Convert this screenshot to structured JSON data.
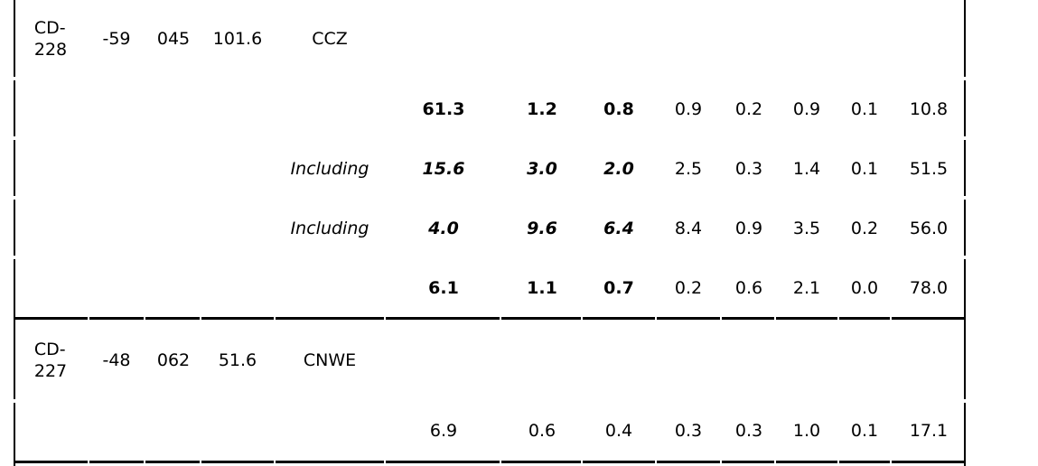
{
  "holes": [
    {
      "id_line1": "CD-",
      "id_line2": "228",
      "dip": "-59",
      "azimuth": "045",
      "depth": "101.6",
      "target": "CCZ",
      "intervals": [
        {
          "label": "",
          "v1": "61.3",
          "v2": "1.2",
          "v3": "0.8",
          "v4": "0.9",
          "v5": "0.2",
          "v6": "0.9",
          "v7": "0.1",
          "v8": "10.8"
        },
        {
          "label": "Including",
          "v1": "15.6",
          "v2": "3.0",
          "v3": "2.0",
          "v4": "2.5",
          "v5": "0.3",
          "v6": "1.4",
          "v7": "0.1",
          "v8": "51.5"
        },
        {
          "label": "Including",
          "v1": "4.0",
          "v2": "9.6",
          "v3": "6.4",
          "v4": "8.4",
          "v5": "0.9",
          "v6": "3.5",
          "v7": "0.2",
          "v8": "56.0"
        },
        {
          "label": "",
          "v1": "6.1",
          "v2": "1.1",
          "v3": "0.7",
          "v4": "0.2",
          "v5": "0.6",
          "v6": "2.1",
          "v7": "0.0",
          "v8": "78.0"
        }
      ]
    },
    {
      "id_line1": "CD-",
      "id_line2": "227",
      "dip": "-48",
      "azimuth": "062",
      "depth": "51.6",
      "target": "CNWE",
      "intervals": [
        {
          "label": "",
          "v1": "6.9",
          "v2": "0.6",
          "v3": "0.4",
          "v4": "0.3",
          "v5": "0.3",
          "v6": "1.0",
          "v7": "0.1",
          "v8": "17.1"
        }
      ]
    }
  ]
}
